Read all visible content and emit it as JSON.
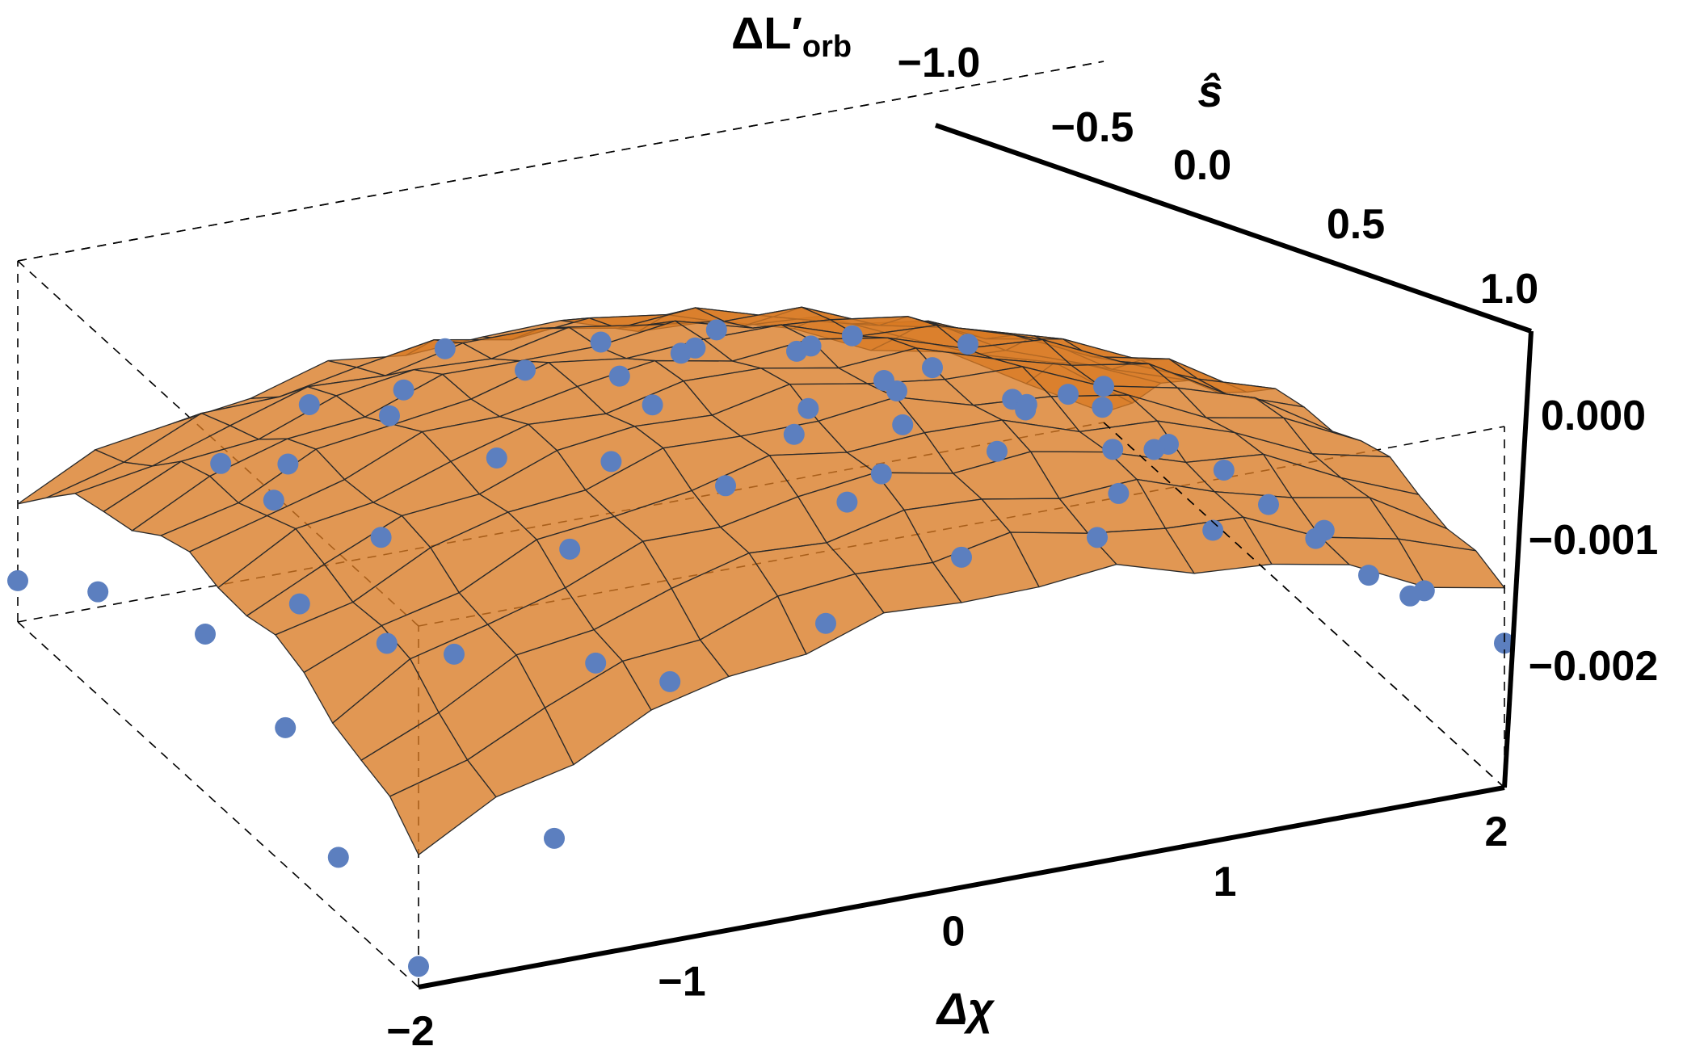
{
  "chart_data": {
    "type": "scatter",
    "subtype": "3d-surface-with-points",
    "axes": {
      "x": {
        "label": "Δχ",
        "ticks": [
          "−2",
          "−1",
          "0",
          "1",
          "2"
        ],
        "range": [
          -2,
          2
        ]
      },
      "y": {
        "label": "ŝ",
        "ticks": [
          "−1.0",
          "−0.5",
          "0.0",
          "0.5",
          "1.0"
        ],
        "range": [
          -1,
          1
        ]
      },
      "z": {
        "label_main": "ΔL′",
        "label_sub": "orb",
        "ticks": [
          "0.000",
          "−0.001",
          "−0.002"
        ],
        "range": [
          -0.0029,
          0.0006
        ]
      }
    },
    "colors": {
      "surface": "#d97a22",
      "mesh": "#2a2a2a",
      "points": "#5c7fbf",
      "box": "#000000"
    },
    "grid": false,
    "bounding_box": "dashed",
    "points": [
      [
        -2.0,
        -1.0,
        -0.0027
      ],
      [
        -2.0,
        -0.6,
        -0.00235
      ],
      [
        -1.9,
        -0.2,
        -0.00185
      ],
      [
        -1.9,
        0.2,
        -0.00165
      ],
      [
        -2.0,
        0.6,
        -0.0019
      ],
      [
        -2.0,
        1.0,
        -0.0025
      ],
      [
        -1.5,
        -1.0,
        -0.0017
      ],
      [
        -1.5,
        -0.5,
        -0.0008
      ],
      [
        -1.4,
        0.0,
        -0.0006
      ],
      [
        -1.5,
        0.4,
        -0.0009
      ],
      [
        -1.4,
        0.8,
        -0.0013
      ],
      [
        -1.0,
        -0.9,
        -0.0006
      ],
      [
        -1.0,
        -0.4,
        -0.0002
      ],
      [
        -0.9,
        0.1,
        -0.00025
      ],
      [
        -1.0,
        0.5,
        -0.0005
      ],
      [
        -1.0,
        0.9,
        -0.0011
      ],
      [
        -0.5,
        -1.0,
        -0.0001
      ],
      [
        -0.5,
        -0.5,
        0.00035
      ],
      [
        -0.4,
        0.0,
        0.0002
      ],
      [
        -0.5,
        0.5,
        -0.0003
      ],
      [
        -0.5,
        0.9,
        -0.0008
      ],
      [
        0.0,
        -1.0,
        0.0003
      ],
      [
        0.0,
        -0.6,
        0.0004
      ],
      [
        0.1,
        -0.1,
        0.0001
      ],
      [
        0.0,
        0.4,
        -0.0002
      ],
      [
        0.0,
        0.8,
        -0.0008
      ],
      [
        0.5,
        -1.0,
        0.00025
      ],
      [
        0.5,
        -0.5,
        0.0002
      ],
      [
        0.5,
        0.0,
        -0.0001
      ],
      [
        0.5,
        0.5,
        -0.0006
      ],
      [
        0.5,
        0.9,
        -0.0011
      ],
      [
        1.0,
        -0.9,
        -0.0001
      ],
      [
        1.0,
        -0.4,
        -0.0002
      ],
      [
        1.0,
        0.1,
        -0.0006
      ],
      [
        1.0,
        0.5,
        -0.001
      ],
      [
        1.0,
        0.9,
        -0.0014
      ],
      [
        1.5,
        -1.0,
        -0.0006
      ],
      [
        1.5,
        -0.5,
        -0.0008
      ],
      [
        1.5,
        0.0,
        -0.0011
      ],
      [
        1.5,
        0.5,
        -0.0015
      ],
      [
        1.5,
        1.0,
        -0.0019
      ],
      [
        2.0,
        -1.0,
        -0.0015
      ],
      [
        2.0,
        -0.6,
        -0.0017
      ],
      [
        2.0,
        -0.1,
        -0.002
      ],
      [
        2.0,
        0.4,
        -0.0023
      ],
      [
        2.0,
        1.0,
        -0.00255
      ],
      [
        -1.2,
        -0.8,
        -0.0005
      ],
      [
        -0.7,
        -0.2,
        0.00015
      ],
      [
        -0.2,
        -0.7,
        0.0004
      ],
      [
        0.3,
        -0.3,
        0.0002
      ],
      [
        0.8,
        -0.7,
        0.0
      ],
      [
        1.3,
        -0.2,
        -0.0007
      ],
      [
        1.8,
        -0.8,
        -0.0013
      ],
      [
        -1.7,
        0.0,
        -0.0011
      ],
      [
        -0.3,
        0.3,
        -0.0001
      ],
      [
        0.7,
        0.7,
        -0.001
      ],
      [
        1.2,
        0.3,
        -0.0011
      ],
      [
        1.7,
        0.6,
        -0.0019
      ],
      [
        -0.8,
        0.7,
        -0.0007
      ],
      [
        0.2,
        0.6,
        -0.0006
      ],
      [
        -1.6,
        -0.3,
        -0.001
      ],
      [
        -0.1,
        -0.3,
        0.0003
      ],
      [
        0.6,
        0.2,
        -0.0004
      ],
      [
        1.6,
        -0.6,
        -0.001
      ],
      [
        -1.3,
        0.6,
        -0.001
      ],
      [
        0.9,
        -0.1,
        -0.0003
      ]
    ]
  }
}
